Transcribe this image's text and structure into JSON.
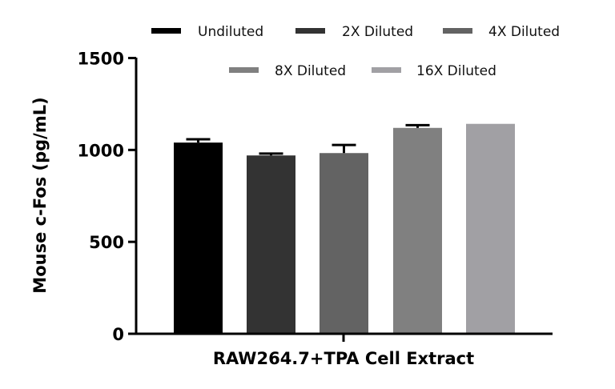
{
  "chart_data": {
    "type": "bar",
    "title": "",
    "xlabel": "RAW264.7+TPA Cell Extract",
    "ylabel": "Mouse c-Fos (pg/mL)",
    "ylim": [
      0,
      1500
    ],
    "yticks": [
      0,
      500,
      1000,
      1500
    ],
    "grid": false,
    "legend_position": "top",
    "categories": [
      "RAW264.7+TPA Cell Extract"
    ],
    "series": [
      {
        "name": "Undiluted",
        "values": [
          1040
        ],
        "error_upper": [
          1058
        ],
        "color": "#000000"
      },
      {
        "name": "2X Diluted",
        "values": [
          970
        ],
        "error_upper": [
          980
        ],
        "color": "#333333"
      },
      {
        "name": "4X Diluted",
        "values": [
          983
        ],
        "error_upper": [
          1027
        ],
        "color": "#636363"
      },
      {
        "name": "8X Diluted",
        "values": [
          1120
        ],
        "error_upper": [
          1135
        ],
        "color": "#808080"
      },
      {
        "name": "16X Diluted",
        "values": [
          1142
        ],
        "error_upper": [
          1142
        ],
        "color": "#a1a0a4"
      }
    ]
  },
  "legend": {
    "items": [
      {
        "label": "Undiluted",
        "color": "#000000"
      },
      {
        "label": "2X Diluted",
        "color": "#333333"
      },
      {
        "label": "4X Diluted",
        "color": "#636363"
      },
      {
        "label": "8X Diluted",
        "color": "#808080"
      },
      {
        "label": "16X Diluted",
        "color": "#a1a0a4"
      }
    ]
  },
  "axes": {
    "y": {
      "title": "Mouse c-Fos (pg/mL)",
      "ticks": [
        "0",
        "500",
        "1000",
        "1500"
      ]
    },
    "x": {
      "title": "RAW264.7+TPA Cell Extract"
    }
  }
}
